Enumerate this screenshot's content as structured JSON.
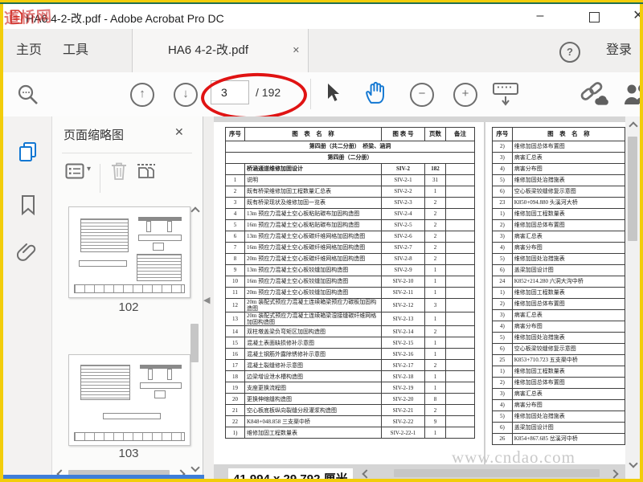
{
  "window": {
    "title": "HA6 4-2-改.pdf - Adobe Acrobat Pro DC",
    "logo_watermark": "道桥网",
    "minimize_glyph": "–",
    "close_glyph": "✕"
  },
  "tab_bar": {
    "home_label": "主页",
    "tools_label": "工具",
    "document_tab_label": "HA6 4-2-改.pdf",
    "tab_close_glyph": "✕",
    "help_glyph": "?",
    "sign_in_label": "登录"
  },
  "toolbar": {
    "page_current": "3",
    "page_total_label": "/ 192",
    "page_up_glyph": "↑",
    "page_down_glyph": "↓",
    "zoom_out_glyph": "−",
    "zoom_in_glyph": "+",
    "annotation_color": "#e01313"
  },
  "sidebar": {
    "panel_title": "页面缩略图",
    "panel_close_glyph": "✕",
    "options_caret_glyph": "▾",
    "collapse_glyph": "◀",
    "thumbnails": [
      {
        "page_label": "102"
      },
      {
        "page_label": "103"
      }
    ]
  },
  "document": {
    "watermark": "www.cndao.com",
    "page_size_indicator": "41.994 x 29.792 厘米",
    "left_table": {
      "headers": [
        "序号",
        "图　表　名　称",
        "图 表 号",
        "页数",
        "备注"
      ],
      "rows": [
        {
          "section": "第四册（共二分册）　桥梁、涵洞"
        },
        {
          "section": "第四册（二分册）"
        },
        {
          "cells": [
            "",
            "桥涵通道维修加固设计",
            "SIV-2",
            "182",
            ""
          ],
          "bold": true
        },
        {
          "cells": [
            "1",
            "说明",
            "SIV-2-1",
            "31",
            ""
          ]
        },
        {
          "cells": [
            "2",
            "既有桥梁维修加固工程数量汇总表",
            "SIV-2-2",
            "1",
            ""
          ]
        },
        {
          "cells": [
            "3",
            "既有桥梁现状及维修加固一览表",
            "SIV-2-3",
            "2",
            ""
          ]
        },
        {
          "cells": [
            "4",
            "13m 预应力混凝土空心板粘贴碳布加固构造图",
            "SIV-2-4",
            "2",
            ""
          ]
        },
        {
          "cells": [
            "5",
            "16m 预应力混凝土空心板粘贴碳布加固构造图",
            "SIV-2-5",
            "2",
            ""
          ]
        },
        {
          "cells": [
            "6",
            "13m 预应力混凝土空心板碳纤维网格加固构造图",
            "SIV-2-6",
            "2",
            ""
          ]
        },
        {
          "cells": [
            "7",
            "16m 预应力混凝土空心板碳纤维网格加固构造图",
            "SIV-2-7",
            "2",
            ""
          ]
        },
        {
          "cells": [
            "8",
            "20m 预应力混凝土空心板碳纤维网格加固构造图",
            "SIV-2-8",
            "2",
            ""
          ]
        },
        {
          "cells": [
            "9",
            "13m 预应力混凝土空心板铰缝加固构造图",
            "SIV-2-9",
            "1",
            ""
          ]
        },
        {
          "cells": [
            "10",
            "16m 预应力混凝土空心板铰缝加固构造图",
            "SIV-2-10",
            "1",
            ""
          ]
        },
        {
          "cells": [
            "11",
            "20m 预应力混凝土空心板铰缝加固构造图",
            "SIV-2-11",
            "1",
            ""
          ]
        },
        {
          "cells": [
            "12",
            "20m 装配式预应力混凝土连续箱梁预应力碳板加固构造图",
            "SIV-2-12",
            "3",
            ""
          ]
        },
        {
          "cells": [
            "13",
            "20m 装配式预应力混凝土连续箱梁湿接缝碳纤维网格加固构造图",
            "SIV-2-13",
            "1",
            ""
          ]
        },
        {
          "cells": [
            "14",
            "双柱墩盖梁负弯矩区加固构造图",
            "SIV-2-14",
            "2",
            ""
          ]
        },
        {
          "cells": [
            "15",
            "混凝土表面缺损修补示意图",
            "SIV-2-15",
            "1",
            ""
          ]
        },
        {
          "cells": [
            "16",
            "混凝土钢筋外露除锈修补示意图",
            "SIV-2-16",
            "1",
            ""
          ]
        },
        {
          "cells": [
            "17",
            "混凝土裂缝修补示意图",
            "SIV-2-17",
            "2",
            ""
          ]
        },
        {
          "cells": [
            "18",
            "边梁增设泄水槽构造图",
            "SIV-2-18",
            "1",
            ""
          ]
        },
        {
          "cells": [
            "19",
            "支座更换流程图",
            "SIV-2-19",
            "1",
            ""
          ]
        },
        {
          "cells": [
            "20",
            "更换伸缩缝构造图",
            "SIV-2-20",
            "8",
            ""
          ]
        },
        {
          "cells": [
            "21",
            "空心板底板纵向裂缝分段灌浆构造图",
            "SIV-2-21",
            "2",
            ""
          ]
        },
        {
          "cells": [
            "22",
            "K848+048.858 三支渠中桥",
            "SIV-2-22",
            "9",
            ""
          ]
        },
        {
          "cells": [
            "1)",
            "维修加固工程数量表",
            "SIV-2-22-1",
            "1",
            ""
          ]
        }
      ]
    },
    "right_table": {
      "headers": [
        "序号",
        "图　表　名　称"
      ],
      "rows": [
        [
          "2)",
          "维修加固总体布置图"
        ],
        [
          "3)",
          "病害汇总表"
        ],
        [
          "4)",
          "病害分布图"
        ],
        [
          "5)",
          "维修加固处治措施表"
        ],
        [
          "6)",
          "空心板梁铰缝修复示意图"
        ],
        [
          "23",
          "K850+094.880 头溪河大桥"
        ],
        [
          "1)",
          "维修加固工程数量表"
        ],
        [
          "2)",
          "维修加固总体布置图"
        ],
        [
          "3)",
          "病害汇总表"
        ],
        [
          "4)",
          "病害分布图"
        ],
        [
          "5)",
          "维修加固处治措施表"
        ],
        [
          "6)",
          "盖梁加固设计图"
        ],
        [
          "24",
          "K852+214.280 六洞大沟中桥"
        ],
        [
          "1)",
          "维修加固工程数量表"
        ],
        [
          "2)",
          "维修加固总体布置图"
        ],
        [
          "3)",
          "病害汇总表"
        ],
        [
          "4)",
          "病害分布图"
        ],
        [
          "5)",
          "维修加固处治措施表"
        ],
        [
          "6)",
          "空心板梁铰缝修复示意图"
        ],
        [
          "25",
          "K853+710.723 五支渠中桥"
        ],
        [
          "1)",
          "维修加固工程数量表"
        ],
        [
          "2)",
          "维修加固总体布置图"
        ],
        [
          "3)",
          "病害汇总表"
        ],
        [
          "4)",
          "病害分布图"
        ],
        [
          "5)",
          "维修加固处治措施表"
        ],
        [
          "6)",
          "盖梁加固设计图"
        ],
        [
          "26",
          "K854+867.685 岔溪河中桥"
        ]
      ]
    }
  }
}
